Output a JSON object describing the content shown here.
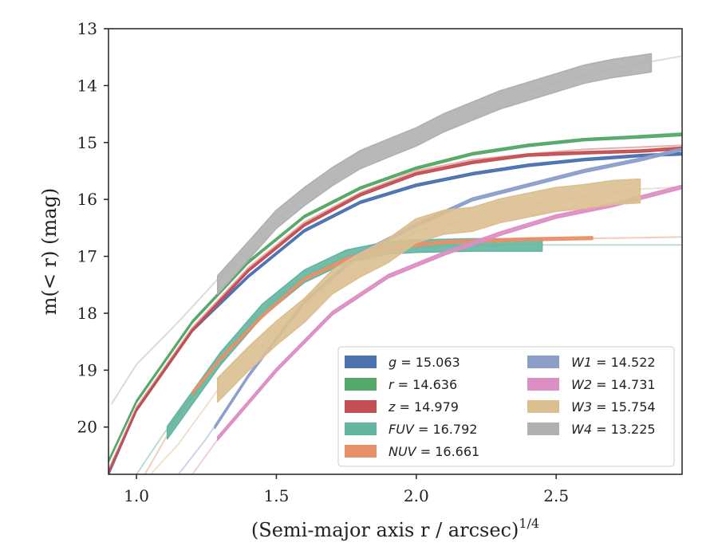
{
  "chart_data": {
    "type": "line",
    "xlabel": "(Semi-major axis r / arcsec)",
    "xlabel_sup": "1/4",
    "ylabel": "m(< r) (mag)",
    "xlim": [
      0.9,
      2.95
    ],
    "ylim": [
      20.83,
      13.0
    ],
    "y_inverted": true,
    "xticks": [
      1.0,
      1.5,
      2.0,
      2.5
    ],
    "xtick_labels": [
      "1.0",
      "1.5",
      "2.0",
      "2.5"
    ],
    "yticks": [
      13,
      14,
      15,
      16,
      17,
      18,
      19,
      20
    ],
    "ytick_labels": [
      "13",
      "14",
      "15",
      "16",
      "17",
      "18",
      "19",
      "20"
    ],
    "grid": false,
    "legend_position": "lower-right",
    "series": [
      {
        "name": "g = 15.063",
        "label_var": "g",
        "label_val": "15.063",
        "color": "#4c72b0",
        "band": 0.04,
        "ext": [
          [
            0.9,
            20.83
          ],
          [
            1.0,
            19.7
          ],
          [
            1.2,
            18.3
          ],
          [
            1.4,
            17.35
          ],
          [
            1.6,
            16.55
          ],
          [
            1.8,
            16.05
          ],
          [
            2.0,
            15.75
          ],
          [
            2.2,
            15.55
          ],
          [
            2.4,
            15.4
          ],
          [
            2.6,
            15.3
          ],
          [
            2.8,
            15.23
          ],
          [
            2.95,
            15.2
          ]
        ],
        "main": [
          [
            0.9,
            20.83
          ],
          [
            1.0,
            19.7
          ],
          [
            1.2,
            18.3
          ],
          [
            1.4,
            17.35
          ],
          [
            1.6,
            16.55
          ],
          [
            1.8,
            16.05
          ],
          [
            2.0,
            15.75
          ],
          [
            2.2,
            15.55
          ],
          [
            2.4,
            15.4
          ],
          [
            2.6,
            15.3
          ],
          [
            2.8,
            15.23
          ],
          [
            2.95,
            15.2
          ]
        ]
      },
      {
        "name": "r = 14.636",
        "label_var": "r",
        "label_val": "14.636",
        "color": "#55a868",
        "band": 0.04,
        "ext": [
          [
            0.9,
            20.6
          ],
          [
            1.0,
            19.55
          ],
          [
            1.2,
            18.15
          ],
          [
            1.4,
            17.1
          ],
          [
            1.6,
            16.3
          ],
          [
            1.8,
            15.8
          ],
          [
            2.0,
            15.45
          ],
          [
            2.2,
            15.2
          ],
          [
            2.4,
            15.05
          ],
          [
            2.6,
            14.95
          ],
          [
            2.8,
            14.88
          ],
          [
            2.95,
            14.83
          ]
        ],
        "main": [
          [
            0.9,
            20.6
          ],
          [
            1.0,
            19.55
          ],
          [
            1.2,
            18.15
          ],
          [
            1.4,
            17.1
          ],
          [
            1.6,
            16.3
          ],
          [
            1.8,
            15.8
          ],
          [
            2.0,
            15.45
          ],
          [
            2.2,
            15.2
          ],
          [
            2.4,
            15.05
          ],
          [
            2.6,
            14.95
          ],
          [
            2.8,
            14.9
          ],
          [
            2.95,
            14.86
          ]
        ]
      },
      {
        "name": "z = 14.979",
        "label_var": "z",
        "label_val": "14.979",
        "color": "#c44e52",
        "band": 0.04,
        "ext": [
          [
            0.9,
            20.75
          ],
          [
            1.0,
            19.65
          ],
          [
            1.2,
            18.25
          ],
          [
            1.4,
            17.2
          ],
          [
            1.6,
            16.4
          ],
          [
            1.8,
            15.88
          ],
          [
            2.0,
            15.5
          ],
          [
            2.2,
            15.3
          ],
          [
            2.4,
            15.2
          ],
          [
            2.6,
            15.12
          ],
          [
            2.8,
            15.08
          ],
          [
            2.95,
            15.05
          ]
        ],
        "main": [
          [
            0.9,
            20.8
          ],
          [
            1.0,
            19.7
          ],
          [
            1.2,
            18.3
          ],
          [
            1.4,
            17.25
          ],
          [
            1.6,
            16.45
          ],
          [
            1.8,
            15.92
          ],
          [
            2.0,
            15.55
          ],
          [
            2.2,
            15.35
          ],
          [
            2.4,
            15.22
          ],
          [
            2.6,
            15.18
          ],
          [
            2.8,
            15.15
          ],
          [
            2.95,
            15.1
          ]
        ]
      },
      {
        "name": "FUV = 16.792",
        "label_var": "FUV",
        "label_val": "16.792",
        "color": "#64b5a0",
        "band": 0.22,
        "ext": [
          [
            1.0,
            20.83
          ],
          [
            1.1,
            20.1
          ],
          [
            1.3,
            18.8
          ],
          [
            1.45,
            17.95
          ],
          [
            1.6,
            17.35
          ],
          [
            1.75,
            17.0
          ],
          [
            1.9,
            16.85
          ],
          [
            2.0,
            16.82
          ],
          [
            2.3,
            16.8
          ],
          [
            2.6,
            16.8
          ],
          [
            2.95,
            16.8
          ]
        ],
        "main": [
          [
            1.11,
            20.1
          ],
          [
            1.3,
            18.8
          ],
          [
            1.45,
            17.95
          ],
          [
            1.6,
            17.35
          ],
          [
            1.75,
            17.0
          ],
          [
            1.9,
            16.85
          ],
          [
            2.0,
            16.82
          ],
          [
            2.2,
            16.8
          ],
          [
            2.45,
            16.8
          ]
        ]
      },
      {
        "name": "NUV = 16.661",
        "label_var": "NUV",
        "label_val": "16.661",
        "color": "#e8906a",
        "band": 0.05,
        "ext": [
          [
            1.03,
            20.83
          ],
          [
            1.15,
            19.8
          ],
          [
            1.3,
            18.8
          ],
          [
            1.45,
            18.05
          ],
          [
            1.6,
            17.4
          ],
          [
            1.75,
            17.05
          ],
          [
            1.9,
            16.85
          ],
          [
            2.1,
            16.75
          ],
          [
            2.4,
            16.7
          ],
          [
            2.7,
            16.68
          ],
          [
            2.95,
            16.66
          ]
        ],
        "main": [
          [
            1.2,
            19.4
          ],
          [
            1.3,
            18.8
          ],
          [
            1.45,
            18.05
          ],
          [
            1.6,
            17.4
          ],
          [
            1.75,
            17.05
          ],
          [
            1.9,
            16.85
          ],
          [
            2.1,
            16.75
          ],
          [
            2.4,
            16.7
          ],
          [
            2.63,
            16.68
          ]
        ]
      },
      {
        "name": "W1 = 14.522",
        "label_var": "W1",
        "label_val": "14.522",
        "color": "#8c9fcb",
        "band": 0.05,
        "ext": [
          [
            1.15,
            20.83
          ],
          [
            1.25,
            20.2
          ],
          [
            1.4,
            19.1
          ],
          [
            1.6,
            17.8
          ],
          [
            1.8,
            16.95
          ],
          [
            2.0,
            16.45
          ],
          [
            2.2,
            16.0
          ],
          [
            2.4,
            15.75
          ],
          [
            2.6,
            15.5
          ],
          [
            2.8,
            15.3
          ],
          [
            2.95,
            15.12
          ]
        ],
        "main": [
          [
            1.28,
            20.0
          ],
          [
            1.4,
            19.1
          ],
          [
            1.6,
            17.8
          ],
          [
            1.8,
            16.95
          ],
          [
            2.0,
            16.45
          ],
          [
            2.2,
            16.0
          ],
          [
            2.4,
            15.75
          ],
          [
            2.6,
            15.5
          ],
          [
            2.8,
            15.3
          ],
          [
            2.95,
            15.12
          ]
        ]
      },
      {
        "name": "W2 = 14.731",
        "label_var": "W2",
        "label_val": "14.731",
        "color": "#dd8fc4",
        "band": 0.06,
        "ext": [
          [
            1.2,
            20.83
          ],
          [
            1.3,
            20.15
          ],
          [
            1.5,
            19.0
          ],
          [
            1.7,
            18.0
          ],
          [
            1.9,
            17.35
          ],
          [
            2.1,
            16.95
          ],
          [
            2.3,
            16.6
          ],
          [
            2.5,
            16.3
          ],
          [
            2.7,
            16.1
          ],
          [
            2.95,
            15.78
          ]
        ],
        "main": [
          [
            1.29,
            20.2
          ],
          [
            1.5,
            19.0
          ],
          [
            1.7,
            18.0
          ],
          [
            1.9,
            17.35
          ],
          [
            2.1,
            16.95
          ],
          [
            2.3,
            16.6
          ],
          [
            2.5,
            16.3
          ],
          [
            2.7,
            16.1
          ],
          [
            2.95,
            15.78
          ]
        ]
      },
      {
        "name": "W3 = 15.754",
        "label_var": "W3",
        "label_val": "15.754",
        "color": "#dcbf90",
        "band": 0.42,
        "ext": [
          [
            1.05,
            20.83
          ],
          [
            1.15,
            20.3
          ],
          [
            1.29,
            19.35
          ],
          [
            1.5,
            18.35
          ],
          [
            1.7,
            17.45
          ],
          [
            1.9,
            16.9
          ],
          [
            2.0,
            16.55
          ],
          [
            2.2,
            16.35
          ],
          [
            2.4,
            16.1
          ],
          [
            2.6,
            15.95
          ],
          [
            2.8,
            15.82
          ],
          [
            2.95,
            15.78
          ]
        ],
        "main": [
          [
            1.29,
            19.35
          ],
          [
            1.4,
            18.8
          ],
          [
            1.5,
            18.35
          ],
          [
            1.6,
            17.95
          ],
          [
            1.7,
            17.45
          ],
          [
            1.8,
            17.15
          ],
          [
            1.9,
            16.9
          ],
          [
            2.0,
            16.55
          ],
          [
            2.1,
            16.4
          ],
          [
            2.2,
            16.35
          ],
          [
            2.3,
            16.2
          ],
          [
            2.4,
            16.1
          ],
          [
            2.5,
            16.0
          ],
          [
            2.6,
            15.95
          ],
          [
            2.7,
            15.88
          ],
          [
            2.8,
            15.85
          ]
        ]
      },
      {
        "name": "W4 = 13.225",
        "label_var": "W4",
        "label_val": "13.225",
        "color": "#b0b0b0",
        "band": 0.32,
        "ext": [
          [
            0.91,
            19.6
          ],
          [
            1.0,
            18.9
          ],
          [
            1.15,
            18.15
          ],
          [
            1.3,
            17.35
          ],
          [
            1.5,
            16.35
          ],
          [
            1.7,
            15.6
          ],
          [
            1.9,
            15.1
          ],
          [
            2.1,
            14.65
          ],
          [
            2.3,
            14.25
          ],
          [
            2.5,
            13.95
          ],
          [
            2.7,
            13.7
          ],
          [
            2.95,
            13.48
          ]
        ],
        "main": [
          [
            1.29,
            17.5
          ],
          [
            1.4,
            16.9
          ],
          [
            1.5,
            16.35
          ],
          [
            1.6,
            15.95
          ],
          [
            1.7,
            15.6
          ],
          [
            1.8,
            15.3
          ],
          [
            1.9,
            15.1
          ],
          [
            2.0,
            14.9
          ],
          [
            2.1,
            14.65
          ],
          [
            2.2,
            14.45
          ],
          [
            2.3,
            14.25
          ],
          [
            2.4,
            14.1
          ],
          [
            2.5,
            13.95
          ],
          [
            2.6,
            13.8
          ],
          [
            2.7,
            13.7
          ],
          [
            2.84,
            13.6
          ]
        ]
      }
    ]
  }
}
